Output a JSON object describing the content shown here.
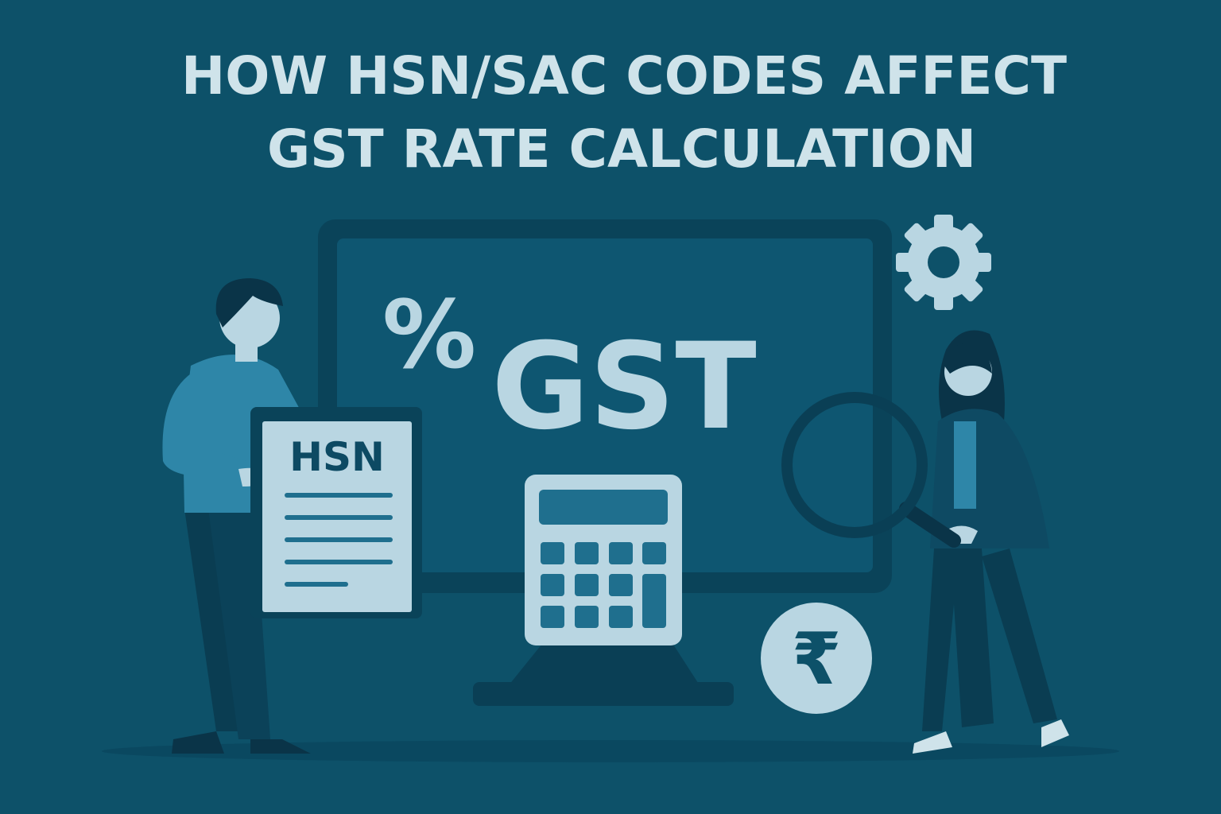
{
  "title": {
    "lines": [
      "HOW HSN/SAC CODES AFFECT",
      "GST RATE CALCULATION"
    ]
  },
  "screen": {
    "percent": "%",
    "label": "GST"
  },
  "document": {
    "label": "HSN"
  },
  "currency": {
    "symbol": "₹"
  }
}
